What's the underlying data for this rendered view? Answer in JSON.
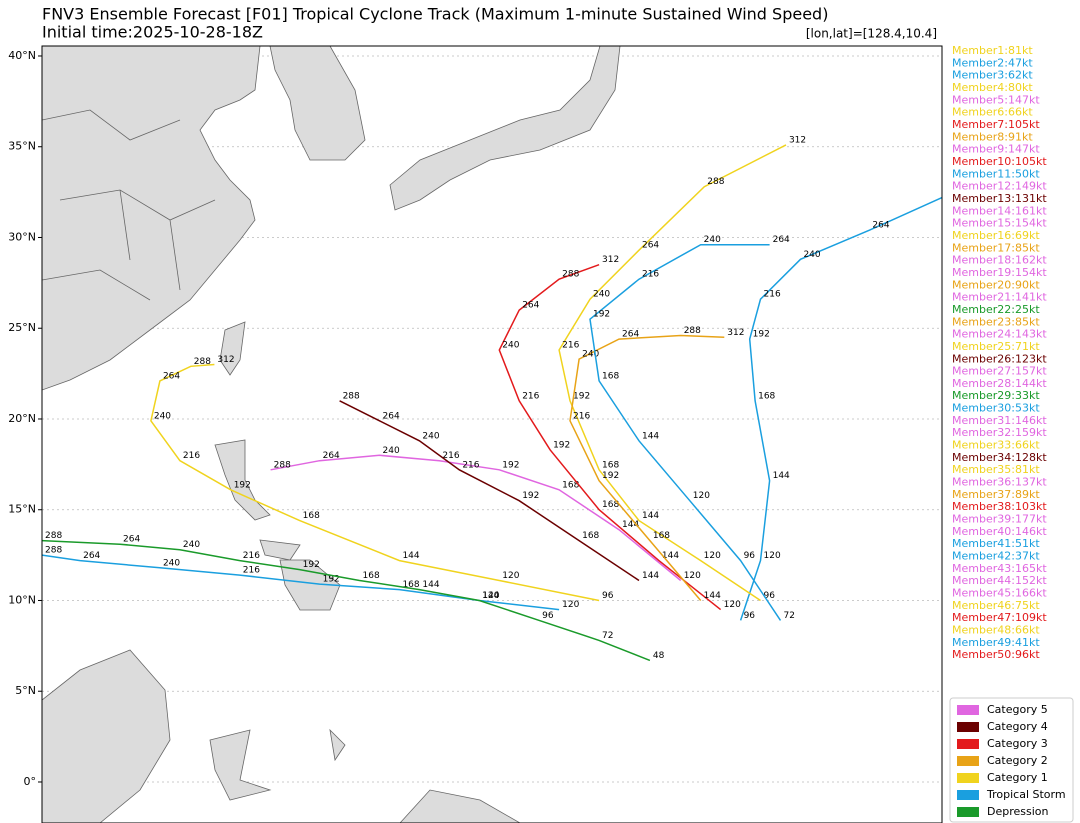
{
  "chart_data": {
    "type": "track-map",
    "title": "FNV3 Ensemble Forecast [F01] Tropical Cyclone Track (Maximum 1-minute Sustained Wind Speed)",
    "subtitle": "Initial time:2025-10-28-18Z",
    "annotation": "[lon,lat]=[128.4,10.4]",
    "xlim": [
      110,
      159.6
    ],
    "ylim": [
      -2.26,
      40.55
    ],
    "yticks": [
      {
        "value": 40,
        "label": "40°N"
      },
      {
        "value": 35,
        "label": "35°N"
      },
      {
        "value": 30,
        "label": "30°N"
      },
      {
        "value": 25,
        "label": "25°N"
      },
      {
        "value": 20,
        "label": "20°N"
      },
      {
        "value": 15,
        "label": "15°N"
      },
      {
        "value": 10,
        "label": "10°N"
      },
      {
        "value": 5,
        "label": "5°N"
      },
      {
        "value": 0,
        "label": "0°"
      }
    ],
    "grid": true,
    "categories": [
      {
        "name": "Category 5",
        "color": "#e066e0"
      },
      {
        "name": "Category 4",
        "color": "#6b0000"
      },
      {
        "name": "Category 3",
        "color": "#e31a1c"
      },
      {
        "name": "Category 2",
        "color": "#e8a317"
      },
      {
        "name": "Category 1",
        "color": "#f0d31e"
      },
      {
        "name": "Tropical Storm",
        "color": "#1a9fdf"
      },
      {
        "name": "Depression",
        "color": "#1a9a2a"
      }
    ],
    "series": [
      {
        "name": "Member1:81kt",
        "color": "#f0d31e",
        "lon": [
          140.7,
          135.2,
          129.7,
          124.2,
          120.4,
          117.6,
          116.0,
          116.5,
          118.2,
          119.5
        ],
        "lat": [
          10.0,
          11.1,
          12.2,
          14.4,
          16.1,
          17.7,
          19.9,
          22.1,
          22.9,
          23.0
        ],
        "hours": [
          96,
          120,
          144,
          168,
          192,
          216,
          240,
          264,
          288,
          312
        ]
      },
      {
        "name": "Member2:47kt",
        "color": "#1a9fdf",
        "lon": [
          138.5,
          134.1,
          129.7,
          125.3,
          120.9,
          116.5,
          112.1,
          110.0
        ],
        "lat": [
          9.5,
          10.0,
          10.6,
          10.9,
          11.4,
          11.8,
          12.2,
          12.5
        ],
        "hours": [
          120,
          144,
          168,
          192,
          216,
          240,
          264,
          288
        ]
      },
      {
        "name": "Member3:62kt",
        "color": "#1a9fdf",
        "lon": [
          148.5,
          149.6,
          150.1,
          149.3,
          149.0,
          149.6,
          151.8,
          155.6,
          159.6
        ],
        "lat": [
          8.9,
          12.2,
          16.6,
          21.0,
          24.4,
          26.6,
          28.8,
          30.4,
          32.2
        ],
        "hours": [
          96,
          120,
          144,
          168,
          192,
          216,
          240,
          264,
          288
        ]
      },
      {
        "name": "Member4:80kt",
        "color": "#f0d31e",
        "lon": [
          149.6,
          146.3,
          142.9,
          140.7,
          139.1,
          138.5,
          140.2,
          142.9,
          146.5,
          151.0
        ],
        "lat": [
          10.0,
          12.2,
          14.4,
          17.2,
          21.0,
          23.8,
          26.6,
          29.3,
          32.8,
          35.1
        ],
        "hours": [
          96,
          120,
          144,
          168,
          192,
          216,
          240,
          264,
          288,
          312
        ]
      },
      {
        "name": "Member5:147kt",
        "color": "#e066e0",
        "lon": [
          145.2,
          141.8,
          138.5,
          135.2,
          131.9,
          128.6,
          125.3,
          122.6
        ],
        "lat": [
          11.1,
          13.9,
          16.1,
          17.2,
          17.7,
          18.0,
          17.7,
          17.2
        ],
        "hours": [
          120,
          144,
          168,
          192,
          216,
          240,
          264,
          288
        ]
      },
      {
        "name": "Member6:66kt",
        "color": "#f0d31e"
      },
      {
        "name": "Member7:105kt",
        "color": "#e31a1c",
        "lon": [
          147.4,
          144.0,
          140.7,
          138.0,
          136.3,
          135.2,
          136.3,
          138.5,
          140.7
        ],
        "lat": [
          9.5,
          12.2,
          15.0,
          18.3,
          21.0,
          23.8,
          26.0,
          27.7,
          28.5
        ],
        "hours": [
          120,
          144,
          168,
          192,
          216,
          240,
          264,
          288,
          312
        ]
      },
      {
        "name": "Member8:91kt",
        "color": "#e8a317",
        "lon": [
          146.3,
          143.5,
          140.7,
          139.1,
          139.6,
          141.8,
          145.2,
          147.6
        ],
        "lat": [
          10.0,
          13.3,
          16.6,
          19.9,
          23.3,
          24.4,
          24.6,
          24.5
        ],
        "hours": [
          144,
          168,
          192,
          216,
          240,
          264,
          288,
          312
        ]
      },
      {
        "name": "Member9:147kt",
        "color": "#e066e0"
      },
      {
        "name": "Member10:105kt",
        "color": "#e31a1c"
      },
      {
        "name": "Member11:50kt",
        "color": "#1a9fdf",
        "lon": [
          150.7,
          148.5,
          145.7,
          142.9,
          140.7,
          140.2,
          142.9,
          146.3,
          150.1
        ],
        "lat": [
          8.9,
          12.2,
          15.5,
          18.8,
          22.1,
          25.5,
          27.7,
          29.6,
          29.6
        ],
        "hours": [
          72,
          96,
          120,
          144,
          168,
          192,
          216,
          240,
          264
        ]
      },
      {
        "name": "Member12:149kt",
        "color": "#e066e0"
      },
      {
        "name": "Member13:131kt",
        "color": "#6b0000",
        "lon": [
          142.9,
          139.6,
          136.3,
          133.0,
          130.8,
          128.6,
          126.4
        ],
        "lat": [
          11.1,
          13.3,
          15.5,
          17.2,
          18.8,
          19.9,
          21.0
        ],
        "hours": [
          144,
          168,
          192,
          216,
          240,
          264,
          288
        ]
      },
      {
        "name": "Member14:161kt",
        "color": "#e066e0"
      },
      {
        "name": "Member15:154kt",
        "color": "#e066e0"
      },
      {
        "name": "Member16:69kt",
        "color": "#f0d31e"
      },
      {
        "name": "Member17:85kt",
        "color": "#e8a317"
      },
      {
        "name": "Member18:162kt",
        "color": "#e066e0"
      },
      {
        "name": "Member19:154kt",
        "color": "#e066e0"
      },
      {
        "name": "Member20:90kt",
        "color": "#e8a317"
      },
      {
        "name": "Member21:141kt",
        "color": "#e066e0"
      },
      {
        "name": "Member22:25kt",
        "color": "#1a9a2a",
        "lon": [
          143.5,
          140.7,
          137.4,
          134.1,
          130.8,
          127.5,
          124.2,
          120.9,
          117.6,
          114.3,
          110.0
        ],
        "lat": [
          6.7,
          7.8,
          8.9,
          10.0,
          10.6,
          11.1,
          11.7,
          12.2,
          12.8,
          13.1,
          13.3
        ],
        "hours": [
          48,
          72,
          96,
          120,
          144,
          168,
          192,
          216,
          240,
          264,
          288
        ]
      },
      {
        "name": "Member23:85kt",
        "color": "#e8a317"
      },
      {
        "name": "Member24:143kt",
        "color": "#e066e0"
      },
      {
        "name": "Member25:71kt",
        "color": "#f0d31e"
      },
      {
        "name": "Member26:123kt",
        "color": "#6b0000"
      },
      {
        "name": "Member27:157kt",
        "color": "#e066e0"
      },
      {
        "name": "Member28:144kt",
        "color": "#e066e0"
      },
      {
        "name": "Member29:33kt",
        "color": "#1a9a2a"
      },
      {
        "name": "Member30:53kt",
        "color": "#1a9fdf"
      },
      {
        "name": "Member31:146kt",
        "color": "#e066e0"
      },
      {
        "name": "Member32:159kt",
        "color": "#e066e0"
      },
      {
        "name": "Member33:66kt",
        "color": "#f0d31e"
      },
      {
        "name": "Member34:128kt",
        "color": "#6b0000"
      },
      {
        "name": "Member35:81kt",
        "color": "#f0d31e"
      },
      {
        "name": "Member36:137kt",
        "color": "#e066e0"
      },
      {
        "name": "Member37:89kt",
        "color": "#e8a317"
      },
      {
        "name": "Member38:103kt",
        "color": "#e31a1c"
      },
      {
        "name": "Member39:177kt",
        "color": "#e066e0"
      },
      {
        "name": "Member40:146kt",
        "color": "#e066e0"
      },
      {
        "name": "Member41:51kt",
        "color": "#1a9fdf"
      },
      {
        "name": "Member42:37kt",
        "color": "#1a9fdf"
      },
      {
        "name": "Member43:165kt",
        "color": "#e066e0"
      },
      {
        "name": "Member44:152kt",
        "color": "#e066e0"
      },
      {
        "name": "Member45:166kt",
        "color": "#e066e0"
      },
      {
        "name": "Member46:75kt",
        "color": "#f0d31e"
      },
      {
        "name": "Member47:109kt",
        "color": "#e31a1c"
      },
      {
        "name": "Member48:66kt",
        "color": "#f0d31e"
      },
      {
        "name": "Member49:41kt",
        "color": "#1a9fdf"
      },
      {
        "name": "Member50:96kt",
        "color": "#e31a1c"
      }
    ]
  }
}
